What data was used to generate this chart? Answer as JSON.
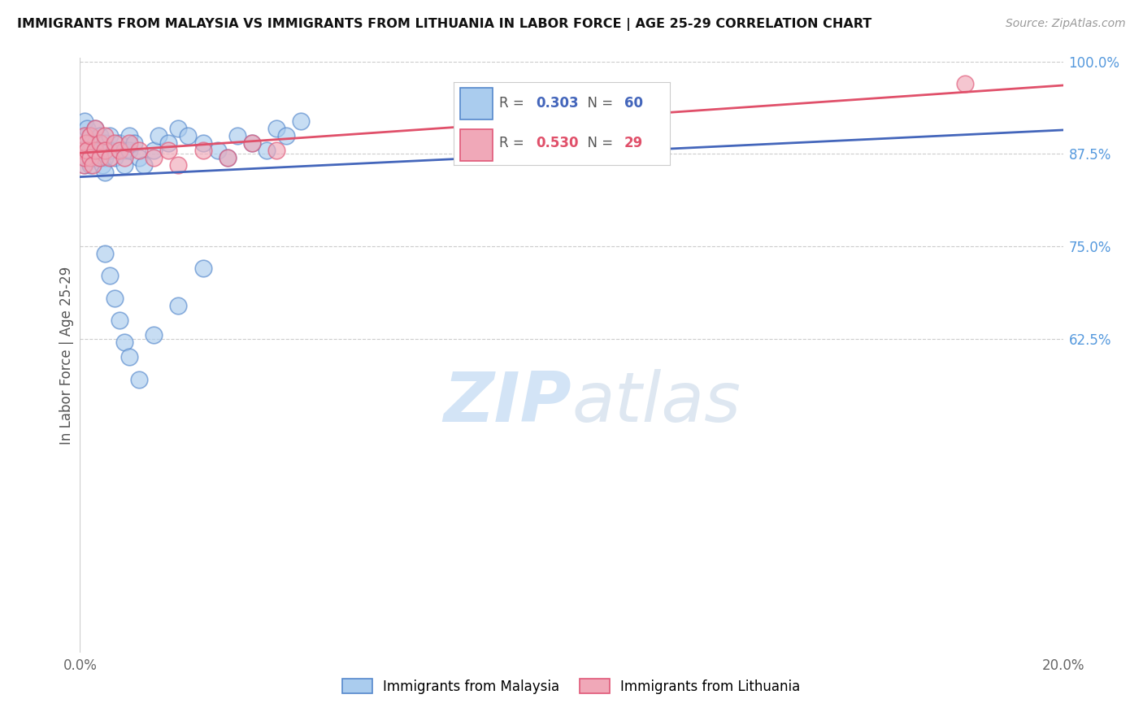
{
  "title": "IMMIGRANTS FROM MALAYSIA VS IMMIGRANTS FROM LITHUANIA IN LABOR FORCE | AGE 25-29 CORRELATION CHART",
  "source": "Source: ZipAtlas.com",
  "ylabel": "In Labor Force | Age 25-29",
  "xlim": [
    0.0,
    0.2
  ],
  "ylim": [
    0.2,
    1.005
  ],
  "xticks": [
    0.0,
    0.05,
    0.1,
    0.15,
    0.2
  ],
  "xticklabels": [
    "0.0%",
    "",
    "",
    "",
    "20.0%"
  ],
  "yticks": [
    0.625,
    0.75,
    0.875,
    1.0
  ],
  "yticklabels": [
    "62.5%",
    "75.0%",
    "87.5%",
    "100.0%"
  ],
  "malaysia_color": "#aaccee",
  "lithuania_color": "#f0a8b8",
  "malaysia_edge": "#5588cc",
  "lithuania_edge": "#e05878",
  "trendline_malaysia_color": "#4466bb",
  "trendline_lithuania_color": "#e0506a",
  "malaysia_R": 0.303,
  "malaysia_N": 60,
  "lithuania_R": 0.53,
  "lithuania_N": 29,
  "malaysia_x": [
    0.0005,
    0.0007,
    0.0008,
    0.001,
    0.001,
    0.001,
    0.0012,
    0.0013,
    0.0015,
    0.0015,
    0.002,
    0.002,
    0.002,
    0.0022,
    0.0025,
    0.003,
    0.003,
    0.003,
    0.0035,
    0.004,
    0.004,
    0.0045,
    0.005,
    0.005,
    0.005,
    0.006,
    0.006,
    0.007,
    0.008,
    0.009,
    0.009,
    0.01,
    0.01,
    0.011,
    0.012,
    0.013,
    0.015,
    0.016,
    0.018,
    0.02,
    0.022,
    0.025,
    0.028,
    0.03,
    0.032,
    0.035,
    0.038,
    0.04,
    0.042,
    0.045,
    0.005,
    0.006,
    0.007,
    0.008,
    0.009,
    0.01,
    0.012,
    0.015,
    0.02,
    0.025
  ],
  "malaysia_y": [
    0.88,
    0.87,
    0.9,
    0.92,
    0.88,
    0.86,
    0.9,
    0.87,
    0.91,
    0.88,
    0.9,
    0.88,
    0.86,
    0.89,
    0.87,
    0.91,
    0.89,
    0.87,
    0.88,
    0.9,
    0.88,
    0.86,
    0.89,
    0.87,
    0.85,
    0.9,
    0.88,
    0.87,
    0.89,
    0.88,
    0.86,
    0.9,
    0.88,
    0.89,
    0.87,
    0.86,
    0.88,
    0.9,
    0.89,
    0.91,
    0.9,
    0.89,
    0.88,
    0.87,
    0.9,
    0.89,
    0.88,
    0.91,
    0.9,
    0.92,
    0.74,
    0.71,
    0.68,
    0.65,
    0.62,
    0.6,
    0.57,
    0.63,
    0.67,
    0.72
  ],
  "lithuania_x": [
    0.0005,
    0.0008,
    0.001,
    0.001,
    0.0012,
    0.0015,
    0.002,
    0.002,
    0.0025,
    0.003,
    0.003,
    0.004,
    0.004,
    0.005,
    0.005,
    0.006,
    0.007,
    0.008,
    0.009,
    0.01,
    0.012,
    0.015,
    0.018,
    0.02,
    0.025,
    0.03,
    0.035,
    0.04,
    0.18
  ],
  "lithuania_y": [
    0.88,
    0.86,
    0.9,
    0.87,
    0.89,
    0.88,
    0.9,
    0.87,
    0.86,
    0.91,
    0.88,
    0.89,
    0.87,
    0.9,
    0.88,
    0.87,
    0.89,
    0.88,
    0.87,
    0.89,
    0.88,
    0.87,
    0.88,
    0.86,
    0.88,
    0.87,
    0.89,
    0.88,
    0.97
  ],
  "watermark_zip": "ZIP",
  "watermark_atlas": "atlas",
  "background_color": "#ffffff",
  "tick_color": "#5599dd",
  "grid_color": "#cccccc"
}
